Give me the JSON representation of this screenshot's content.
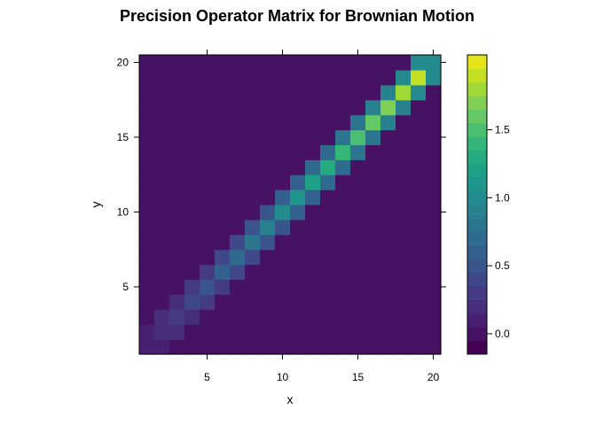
{
  "chart_data": {
    "type": "heatmap",
    "title": "Precision Operator Matrix for Brownian Motion",
    "xlabel": "x",
    "ylabel": "y",
    "x_range": [
      1,
      20
    ],
    "y_range": [
      1,
      20
    ],
    "x_ticks": [
      5,
      10,
      15,
      20
    ],
    "y_ticks": [
      5,
      10,
      15,
      20
    ],
    "colorbar": {
      "ticks": [
        0.0,
        0.5,
        1.0,
        1.5
      ],
      "tick_labels": [
        "0.0",
        "0.5",
        "1.0",
        "1.5"
      ],
      "breaks": [
        -0.15,
        -0.05,
        0.05,
        0.15,
        0.25,
        0.35,
        0.45,
        0.55,
        0.65,
        0.75,
        0.85,
        0.95,
        1.05,
        1.15,
        1.25,
        1.35,
        1.45,
        1.55,
        1.65,
        1.75,
        1.85,
        1.95,
        2.05
      ],
      "colors": [
        "#440154",
        "#471164",
        "#482071",
        "#472e7c",
        "#443b84",
        "#3f4889",
        "#3a548c",
        "#34608d",
        "#2f6b8e",
        "#2b768e",
        "#27818e",
        "#238b8d",
        "#1f968b",
        "#1fa187",
        "#26ab81",
        "#35b679",
        "#4bbf6f",
        "#64c864",
        "#81d055",
        "#a0da39",
        "#c2df23",
        "#e4e419"
      ]
    },
    "matrix_description": "Symmetric tridiagonal precision matrix; value at (x,y) for 1<=x,y<=20",
    "diagonal": [
      0.1,
      0.2,
      0.3,
      0.4,
      0.5,
      0.6,
      0.7,
      0.8,
      0.9,
      1.0,
      1.1,
      1.2,
      1.3,
      1.4,
      1.5,
      1.6,
      1.7,
      1.8,
      1.9,
      1.0
    ],
    "off_diagonal": [
      0.1,
      0.15,
      0.2,
      0.25,
      0.3,
      0.35,
      0.4,
      0.45,
      0.5,
      0.55,
      0.6,
      0.65,
      0.7,
      0.75,
      0.8,
      0.85,
      0.9,
      0.95,
      1.0
    ],
    "background_value": 0.0
  }
}
